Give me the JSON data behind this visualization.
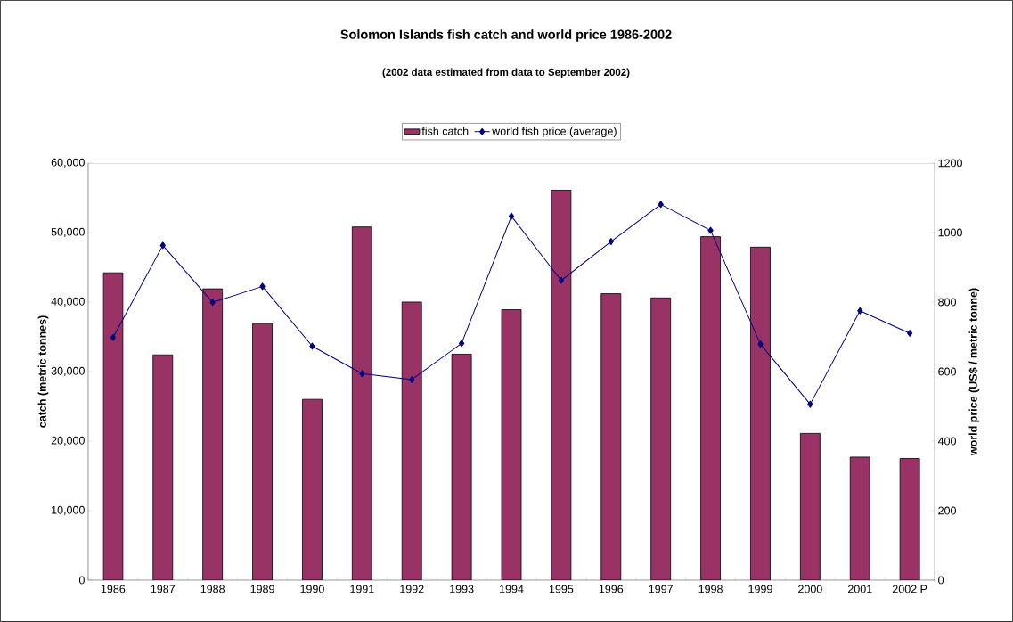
{
  "chart_data": {
    "type": "bar",
    "title": "Solomon Islands fish catch and world price 1986-2002",
    "subtitle": "(2002 data estimated from data to September 2002)",
    "ylabel": "catch (metric tonnes)",
    "y2label": "world price (US$ / metric tonne)",
    "categories": [
      "1986",
      "1987",
      "1988",
      "1989",
      "1990",
      "1991",
      "1992",
      "1993",
      "1994",
      "1995",
      "1996",
      "1997",
      "1998",
      "1999",
      "2000",
      "2001",
      "2002 P"
    ],
    "series": [
      {
        "name": "fish catch",
        "color": "#993366",
        "values": [
          44200,
          32400,
          41900,
          36900,
          26000,
          50800,
          40000,
          32500,
          38900,
          56100,
          41200,
          40600,
          49400,
          47900,
          21100,
          17700,
          17500
        ]
      },
      {
        "name": "world fish price (average)",
        "type": "line",
        "axis": "y2",
        "color": "#000080",
        "values": [
          698,
          963,
          799,
          845,
          673,
          594,
          577,
          681,
          1047,
          862,
          974,
          1081,
          1006,
          679,
          506,
          775,
          710
        ]
      }
    ],
    "ylim": [
      0,
      60000
    ],
    "yticks": [
      0,
      {
        "value": 10000,
        "label": "10,000"
      },
      {
        "value": 20000,
        "label": "20,000"
      },
      {
        "value": 30000,
        "label": "30,000"
      },
      {
        "value": 40000,
        "label": "40,000"
      },
      {
        "value": 50000,
        "label": "50,000"
      },
      {
        "value": 60000,
        "label": "60,000"
      }
    ],
    "y2lim": [
      0,
      1200
    ],
    "y2ticks": [
      0,
      200,
      400,
      600,
      800,
      1000,
      1200
    ],
    "legend": "top",
    "marker": "diamond",
    "line_style": "solid",
    "grid": false
  }
}
